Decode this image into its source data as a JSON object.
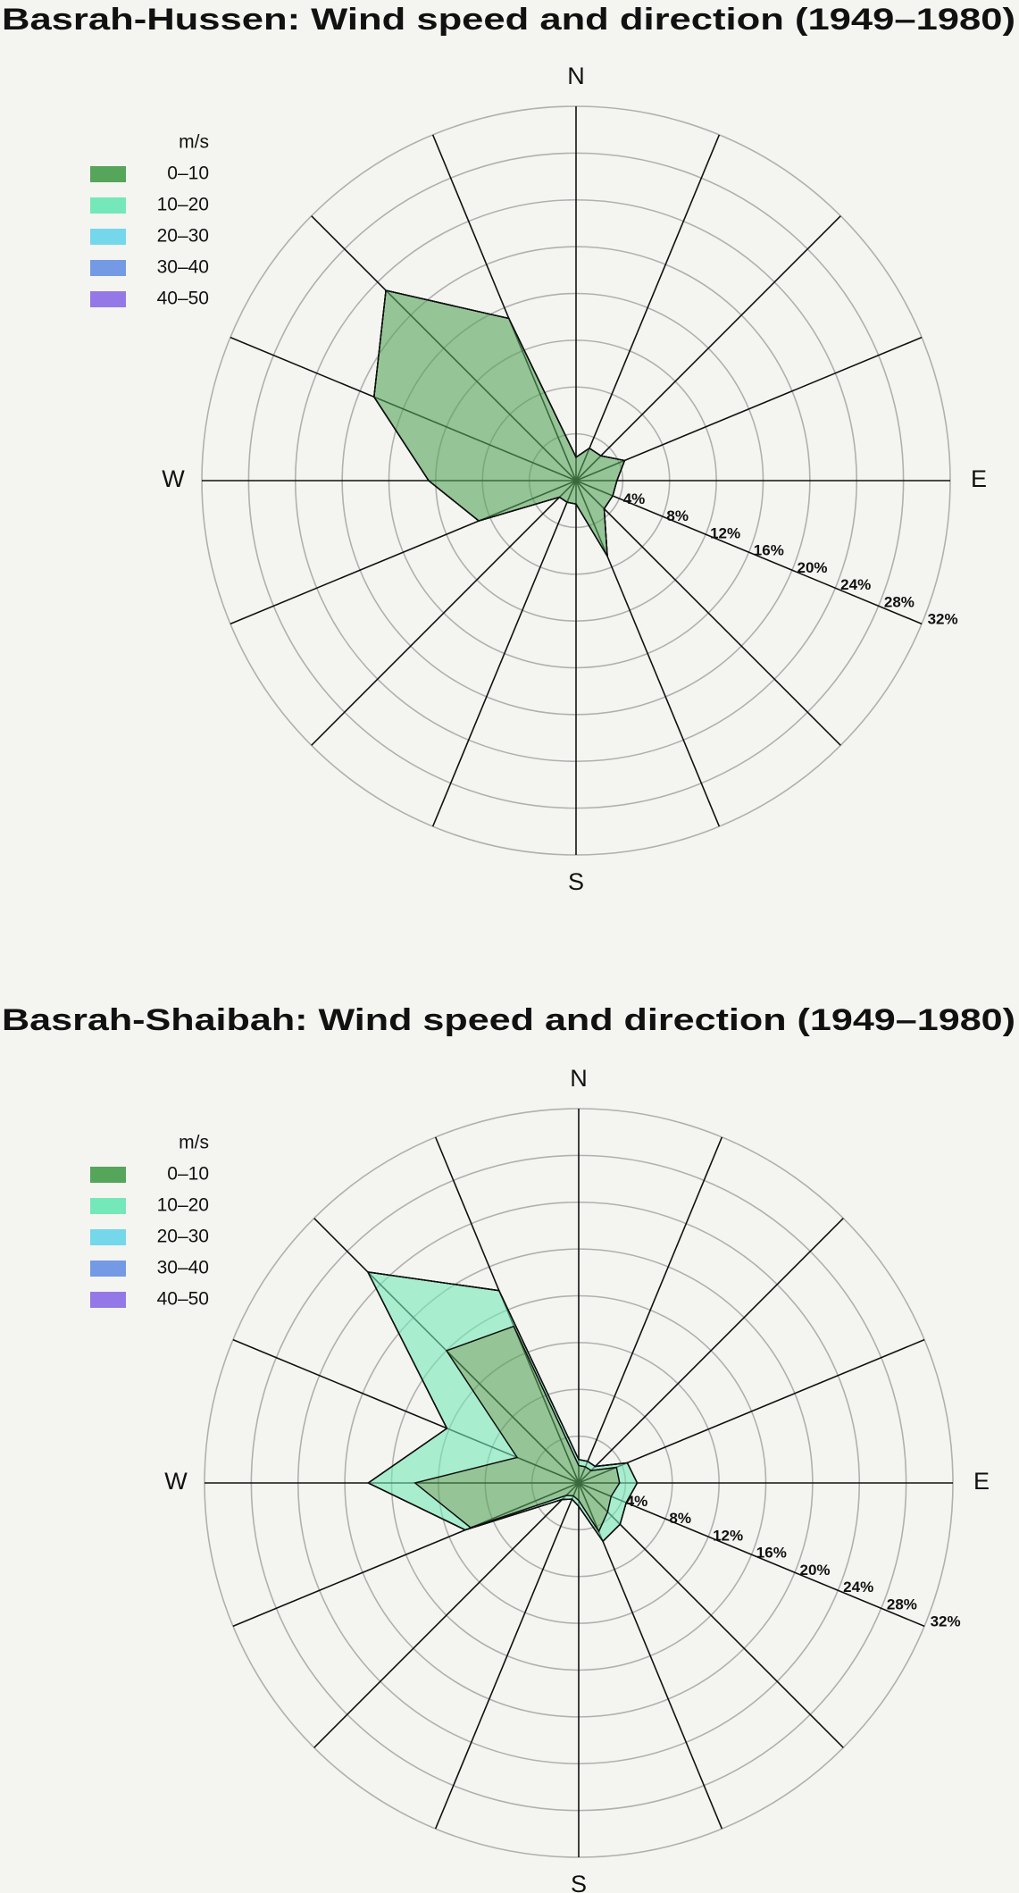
{
  "chart_data": [
    {
      "type": "windrose",
      "title": "Basrah-Hussen: Wind speed and direction (1949–1980)",
      "legend_title": "m/s",
      "categories": [
        "N",
        null,
        null,
        null,
        "E",
        null,
        null,
        null,
        "S",
        null,
        null,
        null,
        "W",
        null,
        null,
        null
      ],
      "rlim": [
        0,
        32
      ],
      "rticks": [
        {
          "value": 4,
          "label": "4%"
        },
        {
          "value": 8,
          "label": "8%"
        },
        {
          "value": 12,
          "label": "12%"
        },
        {
          "value": 16,
          "label": "16%"
        },
        {
          "value": 20,
          "label": "20%"
        },
        {
          "value": 24,
          "label": "24%"
        },
        {
          "value": 28,
          "label": "28%"
        },
        {
          "value": 32,
          "label": "32%"
        }
      ],
      "series": [
        {
          "name": "0–10",
          "color": "#55a55a",
          "values": [
            2,
            3,
            3,
            4.5,
            3.5,
            3.4,
            3.4,
            7,
            2,
            2,
            2,
            9,
            12.6,
            18.7,
            23,
            15
          ]
        },
        {
          "name": "10–20",
          "color": "#74e8b8",
          "values": [
            0,
            0,
            0,
            0,
            0,
            0,
            0,
            0,
            0,
            0,
            0,
            0,
            0,
            0,
            0,
            0
          ]
        },
        {
          "name": "20–30",
          "color": "#74d8ea",
          "values": [
            0,
            0,
            0,
            0,
            0,
            0,
            0,
            0,
            0,
            0,
            0,
            0,
            0,
            0,
            0,
            0
          ]
        },
        {
          "name": "30–40",
          "color": "#749ae6",
          "values": [
            0,
            0,
            0,
            0,
            0,
            0,
            0,
            0,
            0,
            0,
            0,
            0,
            0,
            0,
            0,
            0
          ]
        },
        {
          "name": "40–50",
          "color": "#9478e8",
          "values": [
            0,
            0,
            0,
            0,
            0,
            0,
            0,
            0,
            0,
            0,
            0,
            0,
            0,
            0,
            0,
            0
          ]
        }
      ]
    },
    {
      "type": "windrose",
      "title": "Basrah-Shaibah: Wind speed and direction (1949–1980)",
      "legend_title": "m/s",
      "categories": [
        "N",
        null,
        null,
        null,
        "E",
        null,
        null,
        null,
        "S",
        null,
        null,
        null,
        "W",
        null,
        null,
        null
      ],
      "rlim": [
        0,
        32
      ],
      "rticks": [
        {
          "value": 4,
          "label": "4%"
        },
        {
          "value": 8,
          "label": "8%"
        },
        {
          "value": 12,
          "label": "12%"
        },
        {
          "value": 16,
          "label": "16%"
        },
        {
          "value": 20,
          "label": "20%"
        },
        {
          "value": 24,
          "label": "24%"
        },
        {
          "value": 28,
          "label": "28%"
        },
        {
          "value": 32,
          "label": "32%"
        }
      ],
      "series": [
        {
          "name": "0–10",
          "color": "#55a55a",
          "values": [
            1.5,
            1.5,
            1.5,
            3.5,
            3.5,
            3,
            3.5,
            4.5,
            1.5,
            1.2,
            1.5,
            10,
            14,
            5.7,
            16,
            14.5
          ]
        },
        {
          "name": "10–20",
          "color": "#74e8b8",
          "values": [
            0.5,
            0.5,
            0.5,
            1,
            1.5,
            1.4,
            1.5,
            0.9,
            0.5,
            0.3,
            0.5,
            0.5,
            4,
            6.5,
            9.5,
            3.3
          ]
        },
        {
          "name": "20–30",
          "color": "#74d8ea",
          "values": [
            0,
            0,
            0,
            0,
            0,
            0,
            0,
            0,
            0,
            0,
            0,
            0,
            0,
            0,
            0,
            0
          ]
        },
        {
          "name": "30–40",
          "color": "#749ae6",
          "values": [
            0,
            0,
            0,
            0,
            0,
            0,
            0,
            0,
            0,
            0,
            0,
            0,
            0,
            0,
            0,
            0
          ]
        },
        {
          "name": "40–50",
          "color": "#9478e8",
          "values": [
            0,
            0,
            0,
            0,
            0,
            0,
            0,
            0,
            0,
            0,
            0,
            0,
            0,
            0,
            0,
            0
          ]
        }
      ]
    }
  ]
}
